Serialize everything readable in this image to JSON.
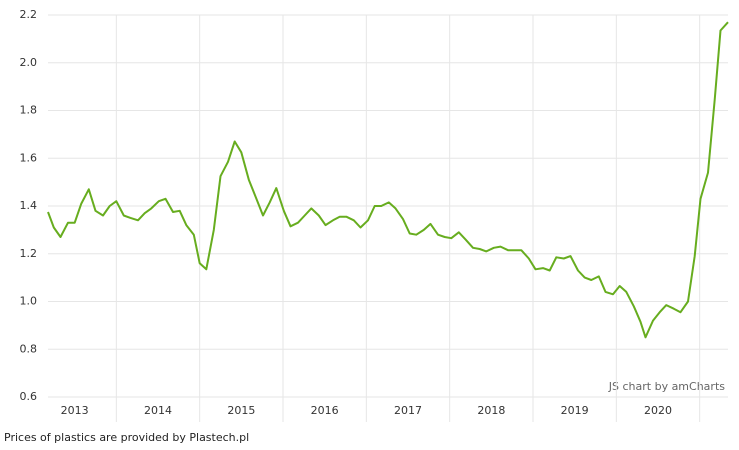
{
  "chart_data": {
    "type": "line",
    "watermark": "JS chart by amCharts",
    "footnote": "Prices of plastics are provided by Plastech.pl",
    "grid": true,
    "xlim": [
      2013.18,
      2021.34
    ],
    "xticks": [
      2013,
      2014,
      2015,
      2016,
      2017,
      2018,
      2019,
      2020
    ],
    "ylim": [
      0.6,
      2.2
    ],
    "yticks": [
      0.6,
      0.8,
      {
        "value": 1,
        "label": "1.0"
      },
      1.2,
      1.4,
      1.6,
      1.8,
      {
        "value": 2,
        "label": "2.0"
      },
      2.2
    ],
    "x": [
      2013.18,
      2013.25,
      2013.33,
      2013.42,
      2013.5,
      2013.58,
      2013.67,
      2013.75,
      2013.84,
      2013.92,
      2014.0,
      2014.09,
      2014.17,
      2014.26,
      2014.34,
      2014.42,
      2014.51,
      2014.59,
      2014.68,
      2014.76,
      2014.84,
      2014.93,
      2015.0,
      2015.08,
      2015.17,
      2015.25,
      2015.34,
      2015.42,
      2015.5,
      2015.59,
      2015.67,
      2015.76,
      2015.84,
      2015.92,
      2016.01,
      2016.09,
      2016.18,
      2016.26,
      2016.34,
      2016.43,
      2016.51,
      2016.6,
      2016.68,
      2016.76,
      2016.85,
      2016.93,
      2017.02,
      2017.1,
      2017.18,
      2017.27,
      2017.35,
      2017.44,
      2017.52,
      2017.6,
      2017.69,
      2017.77,
      2017.86,
      2017.94,
      2018.02,
      2018.11,
      2018.19,
      2018.28,
      2018.36,
      2018.44,
      2018.53,
      2018.61,
      2018.7,
      2018.78,
      2018.86,
      2018.95,
      2019.03,
      2019.12,
      2019.2,
      2019.28,
      2019.37,
      2019.45,
      2019.54,
      2019.62,
      2019.7,
      2019.79,
      2019.87,
      2019.96,
      2020.04,
      2020.12,
      2020.21,
      2020.29,
      2020.35,
      2020.44,
      2020.52,
      2020.6,
      2020.69,
      2020.77,
      2020.86,
      2020.94,
      2021.01,
      2021.1,
      2021.18,
      2021.25,
      2021.34
    ],
    "series": [
      {
        "color": "#67ad1f",
        "values": [
          1.375,
          1.31,
          1.27,
          1.33,
          1.33,
          1.41,
          1.47,
          1.38,
          1.36,
          1.4,
          1.42,
          1.36,
          1.35,
          1.34,
          1.37,
          1.39,
          1.42,
          1.43,
          1.375,
          1.38,
          1.32,
          1.28,
          1.16,
          1.135,
          1.3,
          1.525,
          1.585,
          1.67,
          1.625,
          1.51,
          1.44,
          1.36,
          1.415,
          1.475,
          1.38,
          1.315,
          1.33,
          1.36,
          1.39,
          1.36,
          1.32,
          1.34,
          1.355,
          1.355,
          1.34,
          1.31,
          1.34,
          1.4,
          1.4,
          1.415,
          1.39,
          1.345,
          1.285,
          1.28,
          1.3,
          1.325,
          1.28,
          1.27,
          1.265,
          1.29,
          1.26,
          1.225,
          1.22,
          1.21,
          1.225,
          1.23,
          1.215,
          1.215,
          1.215,
          1.18,
          1.135,
          1.14,
          1.13,
          1.185,
          1.18,
          1.19,
          1.13,
          1.1,
          1.09,
          1.105,
          1.04,
          1.03,
          1.065,
          1.04,
          0.98,
          0.915,
          0.85,
          0.92,
          0.955,
          0.985,
          0.97,
          0.955,
          1.0,
          1.19,
          1.43,
          1.54,
          1.845,
          2.135,
          2.17
        ]
      }
    ]
  }
}
